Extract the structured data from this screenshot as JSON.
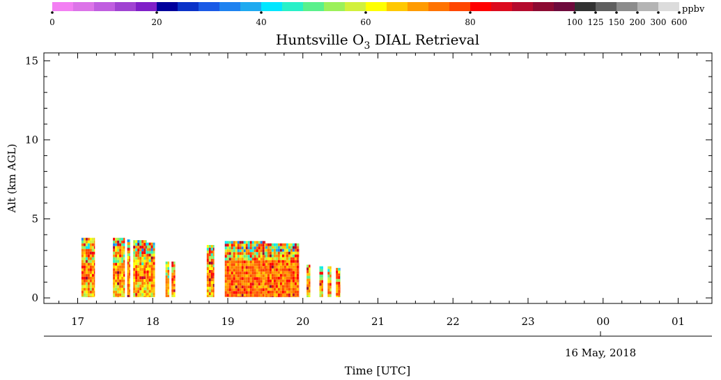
{
  "chart_data": {
    "type": "heatmap",
    "title_prefix": "Huntsville O",
    "title_sub": "3",
    "title_suffix": " DIAL Retrieval",
    "ylabel": "Alt (km AGL)",
    "xlabel": "Time [UTC]",
    "date_label": "16 May, 2018",
    "x_ticks": [
      "17",
      "18",
      "19",
      "20",
      "21",
      "22",
      "23",
      "00",
      "01"
    ],
    "y_ticks": [
      "0",
      "5",
      "10",
      "15"
    ],
    "x_range_hours": [
      16.55,
      25.45
    ],
    "y_range_km": [
      -0.35,
      15.5
    ],
    "colorbar": {
      "unit": "ppbv",
      "labels": [
        "0",
        "20",
        "40",
        "60",
        "80",
        "100",
        "125",
        "150",
        "200",
        "300",
        "600"
      ],
      "colors": [
        "#f37ff3",
        "#dc74e8",
        "#c05ee0",
        "#a043d2",
        "#7f1fc8",
        "#00009c",
        "#0a32c8",
        "#1a5ae6",
        "#1e82f0",
        "#1eaaf0",
        "#00e6ff",
        "#28f0c8",
        "#5af08c",
        "#9cf05a",
        "#d2f03c",
        "#ffff00",
        "#ffc800",
        "#ff9b00",
        "#ff7300",
        "#ff4600",
        "#ff0000",
        "#dc0a1e",
        "#b40a2d",
        "#8c0a32",
        "#6e0a3c",
        "#323232",
        "#5f5f5f",
        "#8c8c8c",
        "#b4b4b4",
        "#dcdcdc"
      ]
    },
    "profiles": [
      {
        "start_hour": 17.05,
        "end_hour": 17.23,
        "top_km": 3.8
      },
      {
        "start_hour": 17.47,
        "end_hour": 17.63,
        "top_km": 3.8
      },
      {
        "start_hour": 17.66,
        "end_hour": 17.7,
        "top_km": 3.7
      },
      {
        "start_hour": 17.74,
        "end_hour": 17.92,
        "top_km": 3.65
      },
      {
        "start_hour": 17.92,
        "end_hour": 18.03,
        "top_km": 3.5
      },
      {
        "start_hour": 18.17,
        "end_hour": 18.22,
        "top_km": 2.3
      },
      {
        "start_hour": 18.25,
        "end_hour": 18.3,
        "top_km": 2.3
      },
      {
        "start_hour": 18.72,
        "end_hour": 18.82,
        "top_km": 3.35
      },
      {
        "start_hour": 18.96,
        "end_hour": 19.5,
        "top_km": 3.6
      },
      {
        "start_hour": 19.5,
        "end_hour": 19.95,
        "top_km": 3.45
      },
      {
        "start_hour": 20.05,
        "end_hour": 20.1,
        "top_km": 2.1
      },
      {
        "start_hour": 20.22,
        "end_hour": 20.27,
        "top_km": 2.0
      },
      {
        "start_hour": 20.33,
        "end_hour": 20.38,
        "top_km": 2.0
      },
      {
        "start_hour": 20.44,
        "end_hour": 20.5,
        "top_km": 1.9
      }
    ]
  }
}
